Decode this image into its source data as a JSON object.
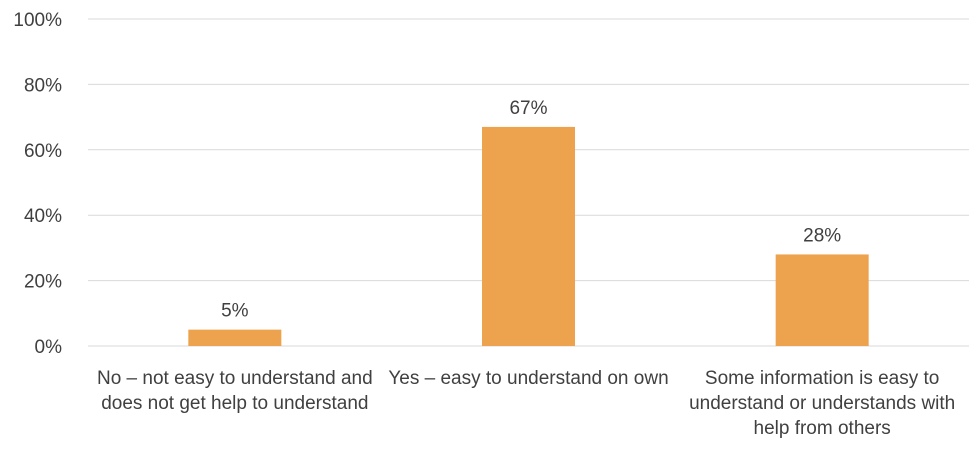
{
  "chart_data": {
    "type": "bar",
    "title": "",
    "xlabel": "",
    "ylabel": "",
    "categories": [
      "No – not easy to understand and does not get help to understand",
      "Yes – easy to understand on own",
      "Some information is easy to understand or understands with help from others"
    ],
    "values": [
      5,
      67,
      28
    ],
    "data_labels": [
      "5%",
      "67%",
      "28%"
    ],
    "ylim": [
      0,
      100
    ],
    "yticks": [
      0,
      20,
      40,
      60,
      80,
      100
    ],
    "ytick_labels": [
      "0%",
      "20%",
      "40%",
      "60%",
      "80%",
      "100%"
    ],
    "grid": true,
    "legend": "none",
    "bar_color": "#EDA24D",
    "grid_color": "#D9D9D9"
  }
}
